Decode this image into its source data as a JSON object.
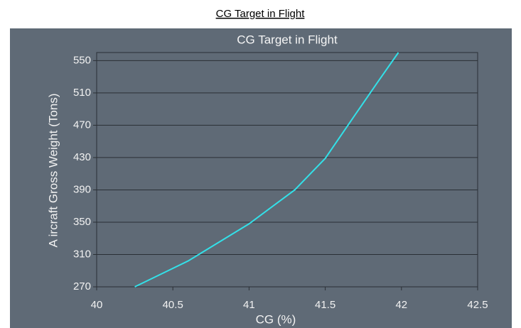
{
  "caption": "CG Target in Flight",
  "chart_data": {
    "type": "line",
    "title": "CG Target in Flight",
    "x_label": "CG (%)",
    "y_label": "A ircraft Gross Weight (Tons)",
    "x": [
      40.25,
      40.6,
      41,
      41.3,
      41.5,
      41.7,
      41.85,
      41.98
    ],
    "series": [
      {
        "color": "#33e0e8",
        "values": [
          270,
          302,
          348,
          390,
          429,
          484,
          525,
          560
        ]
      }
    ],
    "xlim": [
      40,
      42.5
    ],
    "xticks": [
      40,
      40.5,
      41,
      41.5,
      42,
      42.5
    ],
    "ylim": [
      270,
      560
    ],
    "yticks": [
      270,
      310,
      350,
      390,
      430,
      470,
      510,
      550
    ],
    "grid": true
  }
}
